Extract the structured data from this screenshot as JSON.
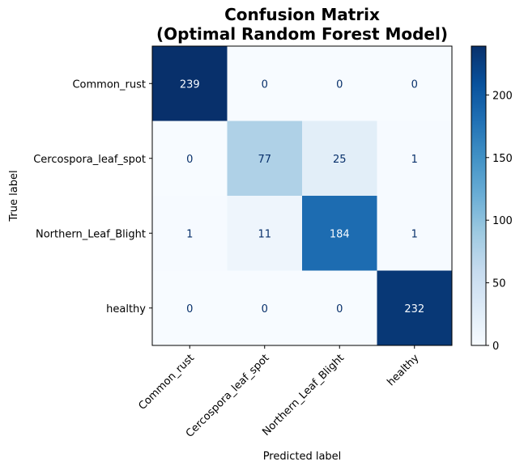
{
  "chart_data": {
    "type": "heatmap",
    "title_lines": [
      "Confusion Matrix",
      "(Optimal Random Forest Model)"
    ],
    "xlabel": "Predicted label",
    "ylabel": "True label",
    "x_categories": [
      "Common_rust",
      "Cercospora_leaf_spot",
      "Northern_Leaf_Blight",
      "healthy"
    ],
    "y_categories": [
      "Common_rust",
      "Cercospora_leaf_spot",
      "Northern_Leaf_Blight",
      "healthy"
    ],
    "matrix": [
      [
        239,
        0,
        0,
        0
      ],
      [
        0,
        77,
        25,
        1
      ],
      [
        1,
        11,
        184,
        1
      ],
      [
        0,
        0,
        0,
        232
      ]
    ],
    "colormap": "Blues",
    "colorbar": {
      "range": [
        0,
        239
      ],
      "ticks": [
        "0",
        "50",
        "100",
        "150",
        "200"
      ]
    },
    "grid": false
  }
}
